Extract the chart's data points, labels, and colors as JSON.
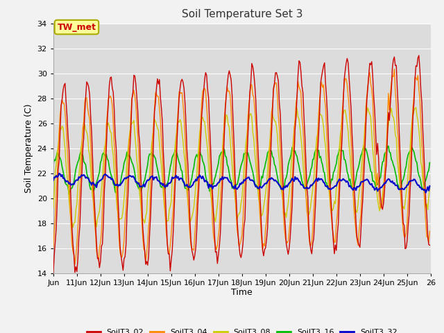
{
  "title": "Soil Temperature Set 3",
  "xlabel": "Time",
  "ylabel": "Soil Temperature (C)",
  "ylim": [
    14,
    34
  ],
  "colors": {
    "SoilT3_02": "#cc0000",
    "SoilT3_04": "#ff8800",
    "SoilT3_08": "#cccc00",
    "SoilT3_16": "#00bb00",
    "SoilT3_32": "#0000cc"
  },
  "annotation_text": "TW_met",
  "annotation_color": "#cc0000",
  "annotation_bg": "#ffff99",
  "annotation_border": "#aaaa00",
  "fig_bg": "#f2f2f2",
  "plot_bg": "#dcdcdc",
  "x_tick_labels": [
    "Jun",
    "11Jun",
    "12Jun",
    "13Jun",
    "14Jun",
    "15Jun",
    "16Jun",
    "17Jun",
    "18Jun",
    "19Jun",
    "20Jun",
    "21Jun",
    "22Jun",
    "23Jun",
    "24Jun",
    "25Jun",
    "26"
  ],
  "n_days": 16
}
